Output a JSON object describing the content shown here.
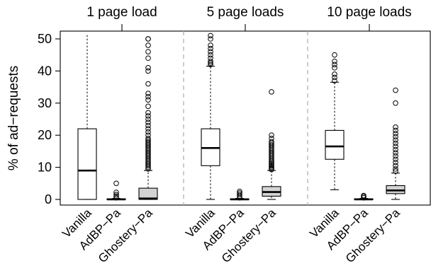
{
  "chart_data": {
    "type": "box",
    "ylabel": "% of ad−requests",
    "ylim": [
      0,
      52
    ],
    "yticks": [
      0,
      10,
      20,
      30,
      40,
      50
    ],
    "grid": false,
    "colors": {
      "Vanilla": "#ffffff",
      "AdBP−Pa": "#d3d3d3",
      "Ghostery−Pa": "#d3d3d3"
    },
    "groups": [
      {
        "label": "1 page load",
        "boxes": [
          {
            "name": "Vanilla",
            "min": 0,
            "q1": 0,
            "median": 9,
            "q3": 22,
            "max": 52,
            "outliers": []
          },
          {
            "name": "AdBP−Pa",
            "min": 0,
            "q1": 0,
            "median": 0,
            "q3": 0.2,
            "max": 0.3,
            "outliers": [
              0.5,
              1,
              1.5,
              2.2,
              5
            ]
          },
          {
            "name": "Ghostery−Pa",
            "min": 0,
            "q1": 0,
            "median": 0.3,
            "q3": 3.5,
            "max": 9,
            "outliers": [
              9.5,
              10,
              10.5,
              11,
              11.5,
              12,
              12.5,
              13,
              13.5,
              14,
              14.5,
              15,
              15.5,
              16,
              16.5,
              17,
              17.5,
              18,
              18.5,
              19,
              20,
              21,
              22,
              23,
              24,
              25,
              26,
              27,
              29,
              31,
              32,
              33,
              36,
              40,
              41,
              44,
              46,
              48,
              50,
              50
            ]
          }
        ]
      },
      {
        "label": "5 page loads",
        "boxes": [
          {
            "name": "Vanilla",
            "min": 0,
            "q1": 10.5,
            "median": 16,
            "q3": 22,
            "max": 41.5,
            "outliers": [
              42,
              42.5,
              43,
              44,
              45,
              46,
              47,
              48,
              50,
              51
            ]
          },
          {
            "name": "AdBP−Pa",
            "min": 0,
            "q1": 0,
            "median": 0,
            "q3": 0.2,
            "max": 0.3,
            "outliers": [
              0.5,
              1,
              1.5,
              2,
              2.5
            ]
          },
          {
            "name": "Ghostery−Pa",
            "min": 0,
            "q1": 1,
            "median": 2.3,
            "q3": 4,
            "max": 9,
            "outliers": [
              9.3,
              9.6,
              10,
              10.4,
              10.8,
              11.2,
              11.6,
              12,
              12.5,
              13,
              13.5,
              14,
              14.5,
              15,
              15.5,
              16,
              16.5,
              17,
              17.5,
              18,
              19,
              20,
              33.5
            ]
          }
        ]
      },
      {
        "label": "10 page loads",
        "boxes": [
          {
            "name": "Vanilla",
            "min": 3,
            "q1": 12.5,
            "median": 16.5,
            "q3": 21.5,
            "max": 36.5,
            "outliers": [
              37,
              38,
              39,
              41,
              42,
              43,
              45
            ]
          },
          {
            "name": "AdBP−Pa",
            "min": 0,
            "q1": 0,
            "median": 0,
            "q3": 0.2,
            "max": 0.3,
            "outliers": [
              0.5,
              0.9,
              1.2
            ]
          },
          {
            "name": "Ghostery−Pa",
            "min": 0,
            "q1": 1.8,
            "median": 2.8,
            "q3": 4.3,
            "max": 8.2,
            "outliers": [
              8.8,
              9.5,
              10.5,
              11.5,
              12.5,
              13.5,
              14.5,
              15.5,
              16.5,
              17.5,
              18.5,
              19.5,
              20.5,
              21.5,
              22.5,
              30,
              34
            ]
          }
        ]
      }
    ]
  }
}
